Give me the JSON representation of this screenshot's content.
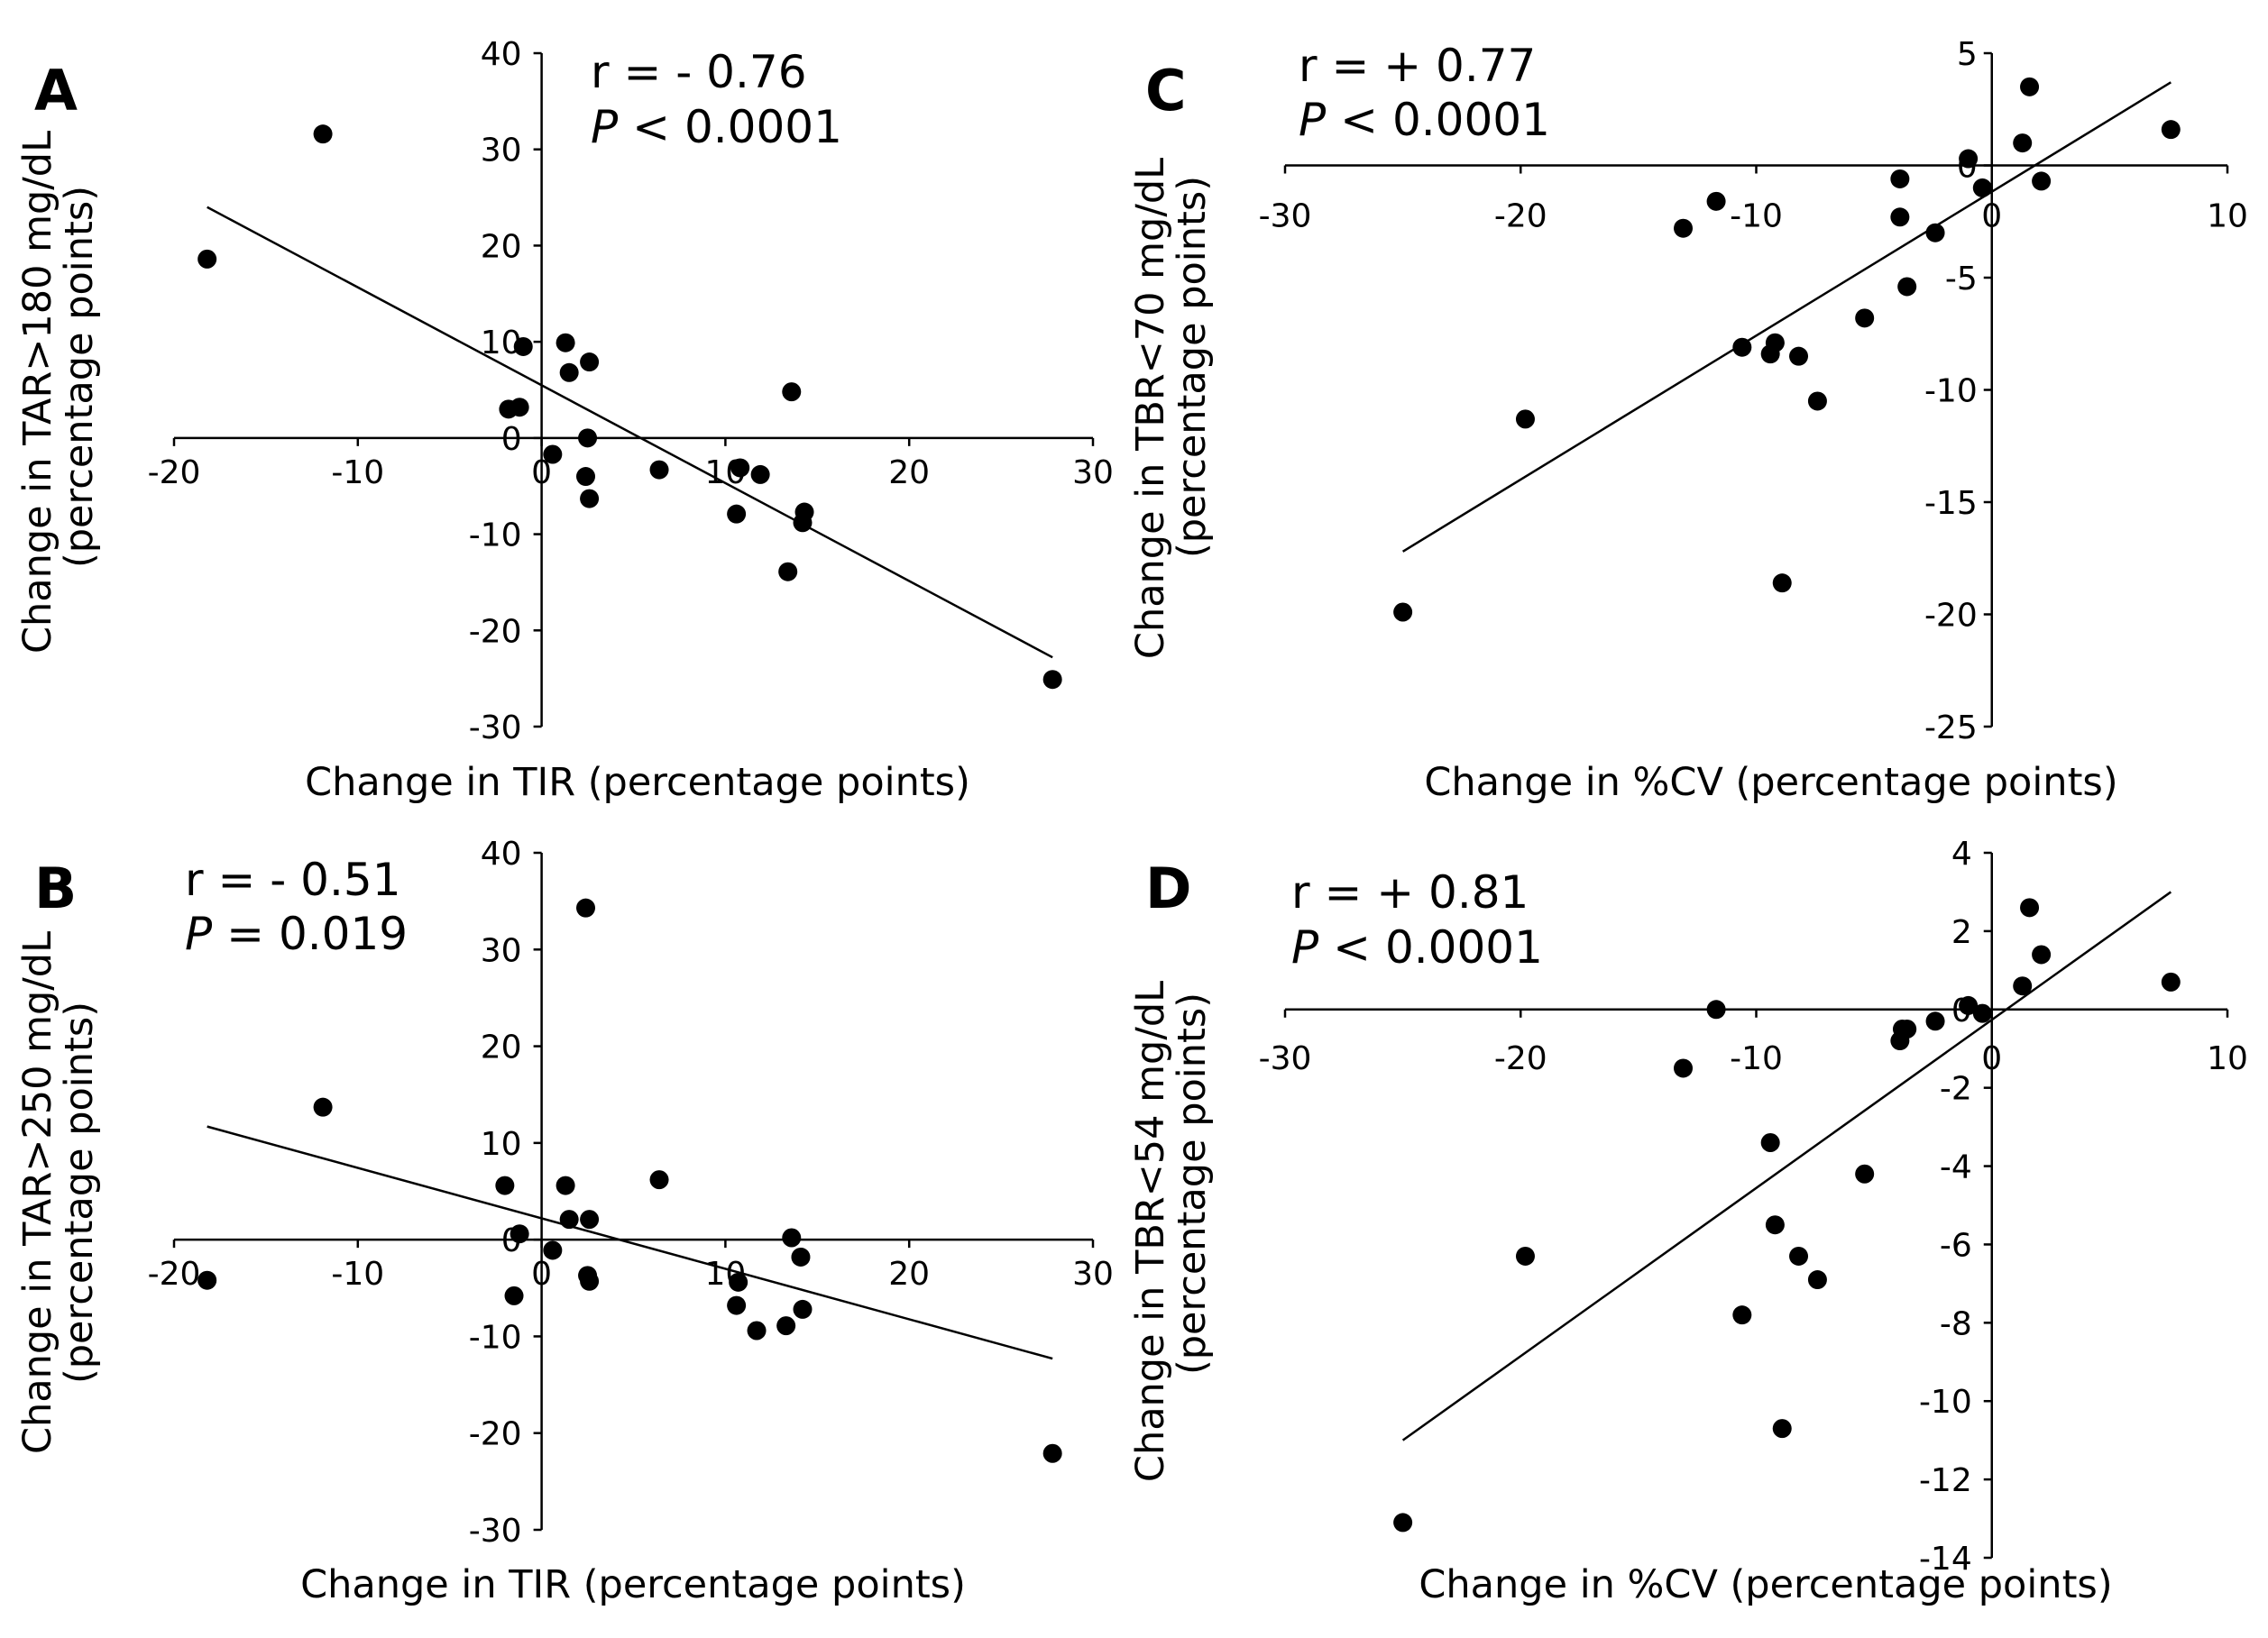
{
  "chart_data": [
    {
      "type": "scatter",
      "panel": "A",
      "xlabel": "Change in TIR (percentage points)",
      "ylabel": [
        "Change in TAR>180 mg/dL",
        "(percentage points)"
      ],
      "stat_r": "r = - 0.76",
      "stat_p_letter": "P",
      "stat_p_rest": "< 0.0001",
      "xlim": [
        -20,
        30
      ],
      "ylim": [
        -30,
        40
      ],
      "xticks": [
        -20,
        -10,
        0,
        10,
        20,
        30
      ],
      "yticks": [
        -30,
        -20,
        -10,
        0,
        10,
        20,
        30,
        40
      ],
      "xtick_labels": [
        "-20",
        "-10",
        "0",
        "10",
        "20",
        "30"
      ],
      "ytick_labels": [
        "-30",
        "-20",
        "-10",
        "0",
        "10",
        "20",
        "30",
        "40"
      ],
      "points": [
        {
          "x": -18.2,
          "y": 18.6
        },
        {
          "x": -11.9,
          "y": 31.6
        },
        {
          "x": -1.0,
          "y": 9.5
        },
        {
          "x": -1.8,
          "y": 3.0
        },
        {
          "x": -1.2,
          "y": 3.2
        },
        {
          "x": 1.3,
          "y": 9.9
        },
        {
          "x": 1.5,
          "y": 6.8
        },
        {
          "x": 2.6,
          "y": 7.9
        },
        {
          "x": 2.5,
          "y": 0.0
        },
        {
          "x": 0.6,
          "y": -1.7
        },
        {
          "x": 2.4,
          "y": -4.0
        },
        {
          "x": 2.6,
          "y": -6.3
        },
        {
          "x": 6.4,
          "y": -3.3
        },
        {
          "x": 10.8,
          "y": -3.1
        },
        {
          "x": 11.9,
          "y": -3.8
        },
        {
          "x": 10.6,
          "y": -7.9
        },
        {
          "x": 13.6,
          "y": 4.8
        },
        {
          "x": 14.3,
          "y": -7.7
        },
        {
          "x": 14.2,
          "y": -8.8
        },
        {
          "x": 13.4,
          "y": -13.9
        },
        {
          "x": 27.8,
          "y": -25.1
        }
      ],
      "fit": {
        "x": [
          -18.2,
          27.8
        ],
        "y": [
          24.0,
          -22.8
        ]
      }
    },
    {
      "type": "scatter",
      "panel": "B",
      "xlabel": "Change in TIR (percentage points)",
      "ylabel": [
        "Change in TAR>250 mg/dL",
        "(percentage points)"
      ],
      "stat_r": "r = - 0.51",
      "stat_p_letter": "P",
      "stat_p_rest": "= 0.019",
      "xlim": [
        -20,
        30
      ],
      "ylim": [
        -30,
        40
      ],
      "xticks": [
        -20,
        -10,
        0,
        10,
        20,
        30
      ],
      "yticks": [
        -30,
        -20,
        -10,
        0,
        10,
        20,
        30,
        40
      ],
      "xtick_labels": [
        "-20",
        "-10",
        "0",
        "10",
        "20",
        "30"
      ],
      "ytick_labels": [
        "-30",
        "-20",
        "-10",
        "0",
        "10",
        "20",
        "30",
        "40"
      ],
      "points": [
        {
          "x": -18.2,
          "y": -4.2
        },
        {
          "x": -11.9,
          "y": 13.7
        },
        {
          "x": 2.4,
          "y": 34.3
        },
        {
          "x": -2.0,
          "y": 5.6
        },
        {
          "x": -1.2,
          "y": 0.6
        },
        {
          "x": 1.3,
          "y": 5.6
        },
        {
          "x": 1.5,
          "y": 2.1
        },
        {
          "x": 2.6,
          "y": 2.1
        },
        {
          "x": 0.6,
          "y": -1.1
        },
        {
          "x": -1.5,
          "y": -5.8
        },
        {
          "x": 2.5,
          "y": -3.7
        },
        {
          "x": 2.6,
          "y": -4.3
        },
        {
          "x": 6.4,
          "y": 6.2
        },
        {
          "x": 10.7,
          "y": -4.4
        },
        {
          "x": 10.6,
          "y": -6.8
        },
        {
          "x": 11.7,
          "y": -9.4
        },
        {
          "x": 13.3,
          "y": -8.9
        },
        {
          "x": 13.6,
          "y": 0.2
        },
        {
          "x": 14.1,
          "y": -1.8
        },
        {
          "x": 14.2,
          "y": -7.2
        },
        {
          "x": 27.8,
          "y": -22.1
        }
      ],
      "fit": {
        "x": [
          -18.2,
          27.8
        ],
        "y": [
          11.7,
          -12.3
        ]
      }
    },
    {
      "type": "scatter",
      "panel": "C",
      "xlabel": "Change in %CV (percentage points)",
      "ylabel": [
        "Change in TBR<70 mg/dL",
        "(percentage points)"
      ],
      "stat_r": "r = + 0.77",
      "stat_p_letter": "P",
      "stat_p_rest": "< 0.0001",
      "xlim": [
        -30,
        10
      ],
      "ylim": [
        -25,
        5
      ],
      "xticks": [
        -30,
        -20,
        -10,
        0,
        10
      ],
      "yticks": [
        -25,
        -20,
        -15,
        -10,
        -5,
        0,
        5
      ],
      "xtick_labels": [
        "-30",
        "-20",
        "-10",
        "0",
        "10"
      ],
      "ytick_labels": [
        "-25",
        "-20",
        "-15",
        "-10",
        "-5",
        "0",
        "5"
      ],
      "points": [
        {
          "x": -25.0,
          "y": -19.9
        },
        {
          "x": -19.8,
          "y": -11.3
        },
        {
          "x": -13.1,
          "y": -2.8
        },
        {
          "x": -11.7,
          "y": -1.6
        },
        {
          "x": -10.6,
          "y": -8.1
        },
        {
          "x": -9.4,
          "y": -8.4
        },
        {
          "x": -9.2,
          "y": -7.9
        },
        {
          "x": -8.9,
          "y": -18.6
        },
        {
          "x": -8.2,
          "y": -8.5
        },
        {
          "x": -7.4,
          "y": -10.5
        },
        {
          "x": -5.4,
          "y": -6.8
        },
        {
          "x": -3.9,
          "y": -0.6
        },
        {
          "x": -3.9,
          "y": -2.3
        },
        {
          "x": -3.6,
          "y": -5.4
        },
        {
          "x": -2.4,
          "y": -3.0
        },
        {
          "x": -1.0,
          "y": 0.3
        },
        {
          "x": -0.4,
          "y": -1.0
        },
        {
          "x": 1.3,
          "y": 1.0
        },
        {
          "x": 1.6,
          "y": 3.5
        },
        {
          "x": 2.1,
          "y": -0.7
        },
        {
          "x": 7.6,
          "y": 1.6
        }
      ],
      "fit": {
        "x": [
          -25.0,
          7.6
        ],
        "y": [
          -17.2,
          3.7
        ]
      }
    },
    {
      "type": "scatter",
      "panel": "D",
      "xlabel": "Change in %CV (percentage points)",
      "ylabel": [
        "Change in TBR<54 mg/dL",
        "(percentage points)"
      ],
      "stat_r": "r = + 0.81",
      "stat_p_letter": "P",
      "stat_p_rest": "< 0.0001",
      "xlim": [
        -30,
        10
      ],
      "ylim": [
        -14,
        4
      ],
      "xticks": [
        -30,
        -20,
        -10,
        0,
        10
      ],
      "yticks": [
        -14,
        -12,
        -10,
        -8,
        -6,
        -4,
        -2,
        0,
        2,
        4
      ],
      "xtick_labels": [
        "-30",
        "-20",
        "-10",
        "0",
        "10"
      ],
      "ytick_labels": [
        "-14",
        "-12",
        "-10",
        "-8",
        "-6",
        "-4",
        "-2",
        "0",
        "2",
        "4"
      ],
      "points": [
        {
          "x": -25.0,
          "y": -13.1
        },
        {
          "x": -19.8,
          "y": -6.3
        },
        {
          "x": -13.1,
          "y": -1.5
        },
        {
          "x": -11.7,
          "y": 0.0
        },
        {
          "x": -10.6,
          "y": -7.8
        },
        {
          "x": -9.4,
          "y": -3.4
        },
        {
          "x": -9.2,
          "y": -5.5
        },
        {
          "x": -8.9,
          "y": -10.7
        },
        {
          "x": -8.2,
          "y": -6.3
        },
        {
          "x": -7.4,
          "y": -6.9
        },
        {
          "x": -5.4,
          "y": -4.2
        },
        {
          "x": -3.9,
          "y": -0.8
        },
        {
          "x": -3.8,
          "y": -0.5
        },
        {
          "x": -3.6,
          "y": -0.5
        },
        {
          "x": -2.4,
          "y": -0.3
        },
        {
          "x": -1.0,
          "y": 0.1
        },
        {
          "x": -0.4,
          "y": -0.1
        },
        {
          "x": 1.3,
          "y": 0.6
        },
        {
          "x": 1.6,
          "y": 2.6
        },
        {
          "x": 2.1,
          "y": 1.4
        },
        {
          "x": 7.6,
          "y": 0.7
        }
      ],
      "fit": {
        "x": [
          -25.0,
          7.6
        ],
        "y": [
          -11.0,
          3.0
        ]
      }
    }
  ]
}
